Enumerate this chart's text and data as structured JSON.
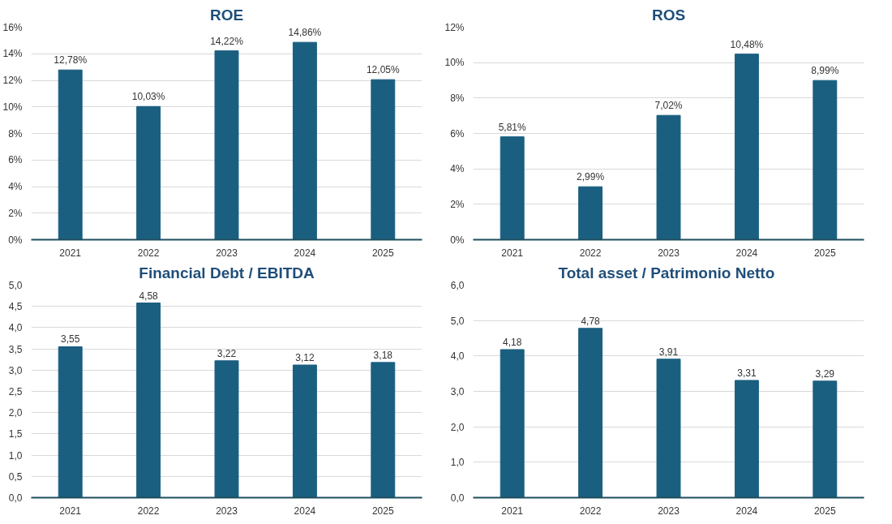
{
  "chart_data": [
    {
      "type": "bar",
      "title": "ROE",
      "categories": [
        "2021",
        "2022",
        "2023",
        "2024",
        "2025"
      ],
      "series": [
        {
          "color": "#1a5f80",
          "values": [
            12.78,
            10.03,
            14.22,
            14.86,
            12.05
          ],
          "value_labels": [
            "12,78%",
            "10,03%",
            "14,22%",
            "14,86%",
            "12,05%"
          ]
        }
      ],
      "ylim": [
        0,
        16
      ],
      "yticks": [
        {
          "value": 0,
          "label": "0%"
        },
        {
          "value": 2,
          "label": "2%"
        },
        {
          "value": 4,
          "label": "4%"
        },
        {
          "value": 6,
          "label": "6%"
        },
        {
          "value": 8,
          "label": "8%"
        },
        {
          "value": 10,
          "label": "10%"
        },
        {
          "value": 12,
          "label": "12%"
        },
        {
          "value": 14,
          "label": "14%"
        },
        {
          "value": 16,
          "label": "16%"
        }
      ],
      "grid": "y"
    },
    {
      "type": "bar",
      "title": "ROS",
      "categories": [
        "2021",
        "2022",
        "2023",
        "2024",
        "2025"
      ],
      "series": [
        {
          "color": "#1a5f80",
          "values": [
            5.81,
            2.99,
            7.02,
            10.48,
            8.99
          ],
          "value_labels": [
            "5,81%",
            "2,99%",
            "7,02%",
            "10,48%",
            "8,99%"
          ]
        }
      ],
      "ylim": [
        0,
        12
      ],
      "yticks": [
        {
          "value": 0,
          "label": "0%"
        },
        {
          "value": 2,
          "label": "2%"
        },
        {
          "value": 4,
          "label": "4%"
        },
        {
          "value": 6,
          "label": "6%"
        },
        {
          "value": 8,
          "label": "8%"
        },
        {
          "value": 10,
          "label": "10%"
        },
        {
          "value": 12,
          "label": "12%"
        }
      ],
      "grid": "y"
    },
    {
      "type": "bar",
      "title": "Financial Debt / EBITDA",
      "categories": [
        "2021",
        "2022",
        "2023",
        "2024",
        "2025"
      ],
      "series": [
        {
          "color": "#1a5f80",
          "values": [
            3.55,
            4.58,
            3.22,
            3.12,
            3.18
          ],
          "value_labels": [
            "3,55",
            "4,58",
            "3,22",
            "3,12",
            "3,18"
          ]
        }
      ],
      "ylim": [
        0,
        5
      ],
      "yticks": [
        {
          "value": 0,
          "label": "0,0"
        },
        {
          "value": 0.5,
          "label": "0,5"
        },
        {
          "value": 1,
          "label": "1,0"
        },
        {
          "value": 1.5,
          "label": "1,5"
        },
        {
          "value": 2,
          "label": "2,0"
        },
        {
          "value": 2.5,
          "label": "2,5"
        },
        {
          "value": 3,
          "label": "3,0"
        },
        {
          "value": 3.5,
          "label": "3,5"
        },
        {
          "value": 4,
          "label": "4,0"
        },
        {
          "value": 4.5,
          "label": "4,5"
        },
        {
          "value": 5,
          "label": "5,0"
        }
      ],
      "grid": "y"
    },
    {
      "type": "bar",
      "title": "Total asset /  Patrimonio Netto",
      "categories": [
        "2021",
        "2022",
        "2023",
        "2024",
        "2025"
      ],
      "series": [
        {
          "color": "#1a5f80",
          "values": [
            4.18,
            4.78,
            3.91,
            3.31,
            3.29
          ],
          "value_labels": [
            "4,18",
            "4,78",
            "3,91",
            "3,31",
            "3,29"
          ]
        }
      ],
      "ylim": [
        0,
        6
      ],
      "yticks": [
        {
          "value": 0,
          "label": "0,0"
        },
        {
          "value": 1,
          "label": "1,0"
        },
        {
          "value": 2,
          "label": "2,0"
        },
        {
          "value": 3,
          "label": "3,0"
        },
        {
          "value": 4,
          "label": "4,0"
        },
        {
          "value": 5,
          "label": "5,0"
        },
        {
          "value": 6,
          "label": "6,0"
        }
      ],
      "grid": "y"
    }
  ]
}
